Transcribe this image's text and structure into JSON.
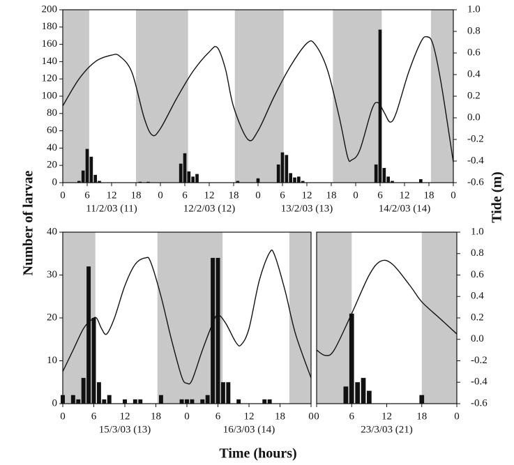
{
  "figure": {
    "ylabel": "Number of larvae",
    "y2label": "Tide (m)",
    "xlabel": "Time (hours)"
  },
  "chart_data": [
    {
      "type": "bar",
      "xlim": [
        0,
        96
      ],
      "xticks": [
        0,
        6,
        12,
        18,
        {
          "value": 24,
          "label": "0"
        },
        {
          "value": 30,
          "label": "6"
        },
        {
          "value": 36,
          "label": "12"
        },
        {
          "value": 42,
          "label": "18"
        },
        {
          "value": 48,
          "label": "0"
        },
        {
          "value": 54,
          "label": "6"
        },
        {
          "value": 60,
          "label": "12"
        },
        {
          "value": 66,
          "label": "18"
        },
        {
          "value": 72,
          "label": "0"
        },
        {
          "value": 78,
          "label": "6"
        },
        {
          "value": 84,
          "label": "12"
        },
        {
          "value": 90,
          "label": "18"
        },
        {
          "value": 96,
          "label": "0"
        }
      ],
      "ylim": [
        0,
        200
      ],
      "yticks": [
        0,
        20,
        40,
        60,
        80,
        100,
        120,
        140,
        160,
        180,
        200
      ],
      "y2lim": [
        -0.6,
        1.0
      ],
      "y2ticks": [
        -0.6,
        -0.4,
        -0.2,
        {
          "value": 0,
          "label": "0.0"
        },
        0.2,
        0.4,
        0.6,
        0.8,
        {
          "value": 1,
          "label": "1.0"
        }
      ],
      "day_labels": [
        "11/2/03 (11)",
        "12/2/03 (12)",
        "13/2/03 (13)",
        "14/2/03 (14)"
      ],
      "shaded": [
        [
          0,
          6.5
        ],
        [
          18,
          30.8
        ],
        [
          42.3,
          54.3
        ],
        [
          66.4,
          78.4
        ],
        [
          90.5,
          96
        ]
      ],
      "shade_color": "#c8c8c8",
      "bars": {
        "color": "#111111",
        "x": [
          4,
          5,
          6,
          7,
          8,
          9,
          19,
          21,
          29,
          30,
          31,
          32,
          33,
          43,
          48,
          53,
          54,
          55,
          56,
          57,
          58,
          59,
          77,
          78,
          79,
          80,
          81,
          88
        ],
        "values": [
          2,
          14,
          39,
          30,
          9,
          2,
          1,
          1,
          22,
          34,
          13,
          7,
          10,
          2,
          5,
          21,
          35,
          32,
          11,
          6,
          7,
          2,
          21,
          177,
          17,
          7,
          2,
          4
        ]
      },
      "tide": {
        "axis": "y2",
        "color": "#111111",
        "x": [
          0,
          4,
          8,
          12,
          14,
          17,
          20,
          22,
          24,
          28,
          32,
          36,
          38,
          40,
          42,
          45.5,
          48,
          52,
          56,
          60,
          62,
          65,
          68,
          70,
          71,
          73,
          76,
          77.5,
          79,
          80.5,
          82,
          85,
          88,
          89.5,
          91,
          93,
          96
        ],
        "values": [
          0.11,
          0.36,
          0.52,
          0.58,
          0.57,
          0.42,
          0.0,
          -0.16,
          -0.1,
          0.18,
          0.43,
          0.61,
          0.65,
          0.45,
          0.1,
          -0.2,
          -0.12,
          0.2,
          0.48,
          0.69,
          0.68,
          0.45,
          0.0,
          -0.36,
          -0.39,
          -0.3,
          0.08,
          0.14,
          0.05,
          -0.04,
          0.05,
          0.42,
          0.7,
          0.75,
          0.68,
          0.32,
          -0.41
        ]
      }
    },
    {
      "type": "bar",
      "xlim": [
        0,
        48
      ],
      "xticks": [
        0,
        6,
        12,
        18,
        {
          "value": 24,
          "label": "0"
        },
        {
          "value": 30,
          "label": "6"
        },
        {
          "value": 36,
          "label": "12"
        },
        {
          "value": 42,
          "label": "18"
        },
        {
          "value": 48,
          "label": "0"
        }
      ],
      "ylim": [
        0,
        40
      ],
      "yticks": [
        0,
        10,
        20,
        30,
        40
      ],
      "y2lim": [
        -0.6,
        1.0
      ],
      "day_labels": [
        "15/3/03 (13)",
        "16/3/03 (14)"
      ],
      "shaded": [
        [
          0,
          6.3
        ],
        [
          18.3,
          30.9
        ],
        [
          43.8,
          48
        ]
      ],
      "shade_color": "#c8c8c8",
      "bars": {
        "color": "#111111",
        "x": [
          0,
          2,
          3,
          4,
          5,
          6,
          7,
          8,
          9,
          12,
          14,
          15,
          19,
          23,
          24,
          25,
          27,
          28,
          29,
          30,
          31,
          32,
          34,
          39,
          40
        ],
        "values": [
          2,
          2,
          1,
          6,
          32,
          20,
          5,
          1,
          2,
          1,
          1,
          1,
          2,
          1,
          1,
          1,
          1,
          2,
          34,
          34,
          5,
          5,
          1,
          1,
          1
        ]
      },
      "tide": {
        "axis": "y2",
        "color": "#111111",
        "x": [
          0,
          2,
          4,
          5.5,
          6.5,
          7.5,
          8.5,
          10,
          12,
          14,
          16,
          17,
          19,
          21,
          23,
          24,
          25,
          27,
          29,
          30,
          31.5,
          33.5,
          34.5,
          36,
          38,
          40,
          41,
          43,
          45,
          48
        ],
        "values": [
          -0.3,
          -0.1,
          0.1,
          0.18,
          0.2,
          0.1,
          0.05,
          0.2,
          0.5,
          0.7,
          0.76,
          0.72,
          0.4,
          0.0,
          -0.35,
          -0.41,
          -0.38,
          -0.1,
          0.15,
          0.23,
          0.15,
          -0.03,
          -0.05,
          0.1,
          0.55,
          0.81,
          0.78,
          0.45,
          0.05,
          -0.36
        ]
      }
    },
    {
      "type": "bar",
      "xlim": [
        0,
        24
      ],
      "xticks": [
        0,
        6,
        12,
        18,
        {
          "value": 24,
          "label": "0"
        }
      ],
      "ylim": [
        0,
        40
      ],
      "y2lim": [
        -0.6,
        1.0
      ],
      "y2ticks": [
        -0.6,
        -0.4,
        -0.2,
        {
          "value": 0,
          "label": "0.0"
        },
        0.2,
        0.4,
        0.6,
        0.8,
        {
          "value": 1,
          "label": "1.0"
        }
      ],
      "day_labels": [
        "23/3/03 (21)"
      ],
      "shaded": [
        [
          0,
          6
        ],
        [
          18,
          24
        ]
      ],
      "shade_color": "#c8c8c8",
      "bars": {
        "color": "#111111",
        "x": [
          5,
          6,
          7,
          8,
          9,
          18
        ],
        "values": [
          4,
          21,
          5,
          6,
          3,
          2
        ]
      },
      "tide": {
        "axis": "y2",
        "color": "#111111",
        "x": [
          0,
          1.5,
          3,
          6,
          9,
          11,
          13,
          16,
          18,
          21,
          24
        ],
        "values": [
          -0.1,
          -0.15,
          -0.1,
          0.24,
          0.6,
          0.73,
          0.7,
          0.5,
          0.35,
          0.2,
          0.05
        ]
      }
    }
  ]
}
